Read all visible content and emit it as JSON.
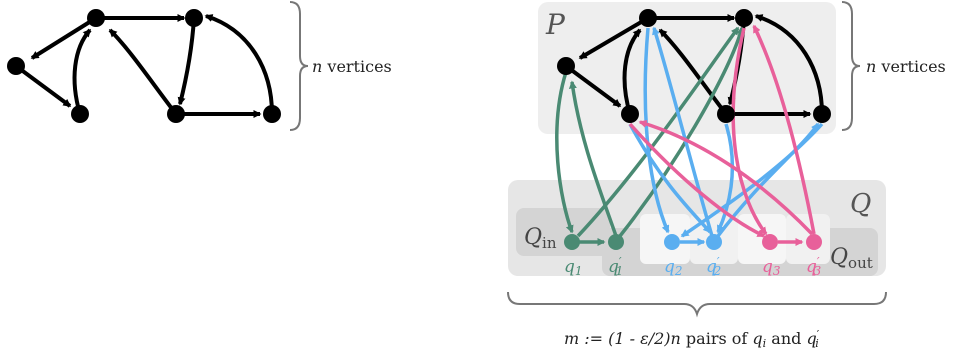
{
  "left_graph": {
    "brace_label_var": "n",
    "brace_label_text": " vertices"
  },
  "right_graph": {
    "box_p_label": "P",
    "box_q_label": "Q",
    "brace_label_var": "n",
    "brace_label_text": " vertices",
    "q_in_label": "Q",
    "q_in_sub": "in",
    "q_out_label": "Q",
    "q_out_sub": "out",
    "q_labels": [
      {
        "base": "q",
        "sub": "1",
        "prime": ""
      },
      {
        "base": "q",
        "sub": "1",
        "prime": "′"
      },
      {
        "base": "q",
        "sub": "2",
        "prime": ""
      },
      {
        "base": "q",
        "sub": "2",
        "prime": "′"
      },
      {
        "base": "q",
        "sub": "3",
        "prime": ""
      },
      {
        "base": "q",
        "sub": "3",
        "prime": "′"
      }
    ]
  },
  "bottom_caption": {
    "part1": "m := (1 - ε/2)n",
    "part2": " pairs of ",
    "q": "q",
    "qi_sub": "i",
    "and": " and ",
    "qprime_sub": "i",
    "prime": "′"
  },
  "colors": {
    "black": "#000000",
    "teal": "#4a8a73",
    "blue": "#5aaef0",
    "pink": "#e8609a",
    "box_bg": "#eeeeee",
    "qbox_bg": "#e6e6e6",
    "inner_box": "#d4d4d4",
    "slot": "#f6f6f6",
    "brace": "#777777"
  }
}
